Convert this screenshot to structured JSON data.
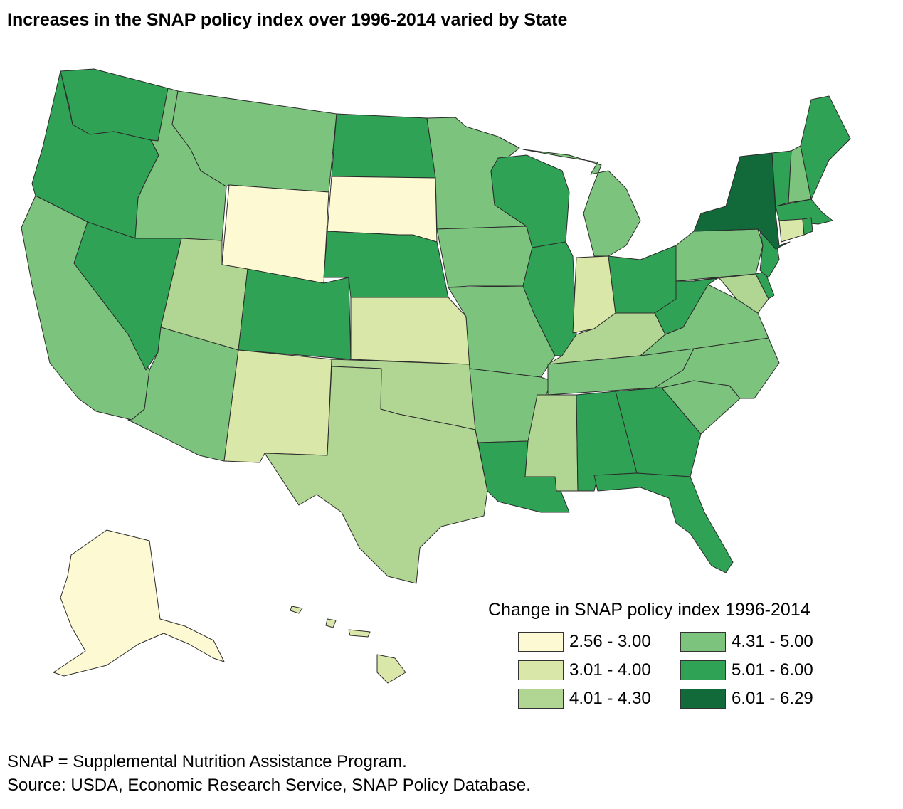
{
  "title": "Increases in the SNAP policy index over 1996-2014 varied by State",
  "legend": {
    "title": "Change in SNAP policy index 1996-2014",
    "classes": [
      {
        "label": "2.56 - 3.00",
        "color": "#fcf9d3"
      },
      {
        "label": "3.01 - 4.00",
        "color": "#d9e7a8"
      },
      {
        "label": "4.01 - 4.30",
        "color": "#b1d693"
      },
      {
        "label": "4.31 - 5.00",
        "color": "#7cc47e"
      },
      {
        "label": "5.01 - 6.00",
        "color": "#30a255"
      },
      {
        "label": "6.01 - 6.29",
        "color": "#126939"
      }
    ]
  },
  "footnote": "SNAP = Supplemental Nutrition Assistance Program.",
  "source": "Source: USDA, Economic Research Service, SNAP Policy Database.",
  "state_classes": {
    "WA": 4,
    "OR": 4,
    "CA": 3,
    "NV": 4,
    "ID": 3,
    "MT": 3,
    "WY": 0,
    "UT": 2,
    "AZ": 3,
    "CO": 4,
    "NM": 1,
    "ND": 4,
    "SD": 0,
    "NE": 4,
    "KS": 1,
    "OK": 2,
    "TX": 2,
    "MN": 3,
    "IA": 3,
    "MO": 3,
    "AR": 3,
    "LA": 4,
    "WI": 4,
    "IL": 4,
    "MI": 3,
    "IN": 1,
    "OH": 4,
    "KY": 2,
    "TN": 3,
    "MS": 2,
    "AL": 4,
    "GA": 4,
    "FL": 4,
    "SC": 3,
    "NC": 3,
    "VA": 3,
    "WV": 4,
    "PA": 3,
    "NY": 5,
    "VT": 4,
    "NH": 3,
    "ME": 4,
    "MA": 4,
    "CT": 1,
    "RI": 4,
    "NJ": 4,
    "DE": 4,
    "MD": 2,
    "AK": 0,
    "HI": 1
  }
}
